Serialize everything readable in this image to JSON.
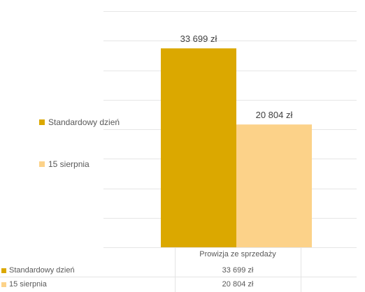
{
  "chart_data": {
    "type": "bar",
    "categories": [
      "Prowizja ze sprzedaży"
    ],
    "series": [
      {
        "name": "Standardowy dzień",
        "values": [
          33699
        ],
        "label": "33 699 zł",
        "color": "#DBA800"
      },
      {
        "name": "15 sierpnia",
        "values": [
          20804
        ],
        "label": "20 804 zł",
        "color": "#FCD289"
      }
    ],
    "ylim": [
      0,
      40000
    ],
    "grid": true,
    "legend": "left",
    "title": "",
    "xlabel": "",
    "ylabel": ""
  },
  "table": {
    "header": "Prowizja ze sprzedaży",
    "rows": [
      {
        "label": "Standardowy dzień",
        "value": "33 699 zł"
      },
      {
        "label": "15 sierpnia",
        "value": "20 804 zł"
      }
    ]
  }
}
